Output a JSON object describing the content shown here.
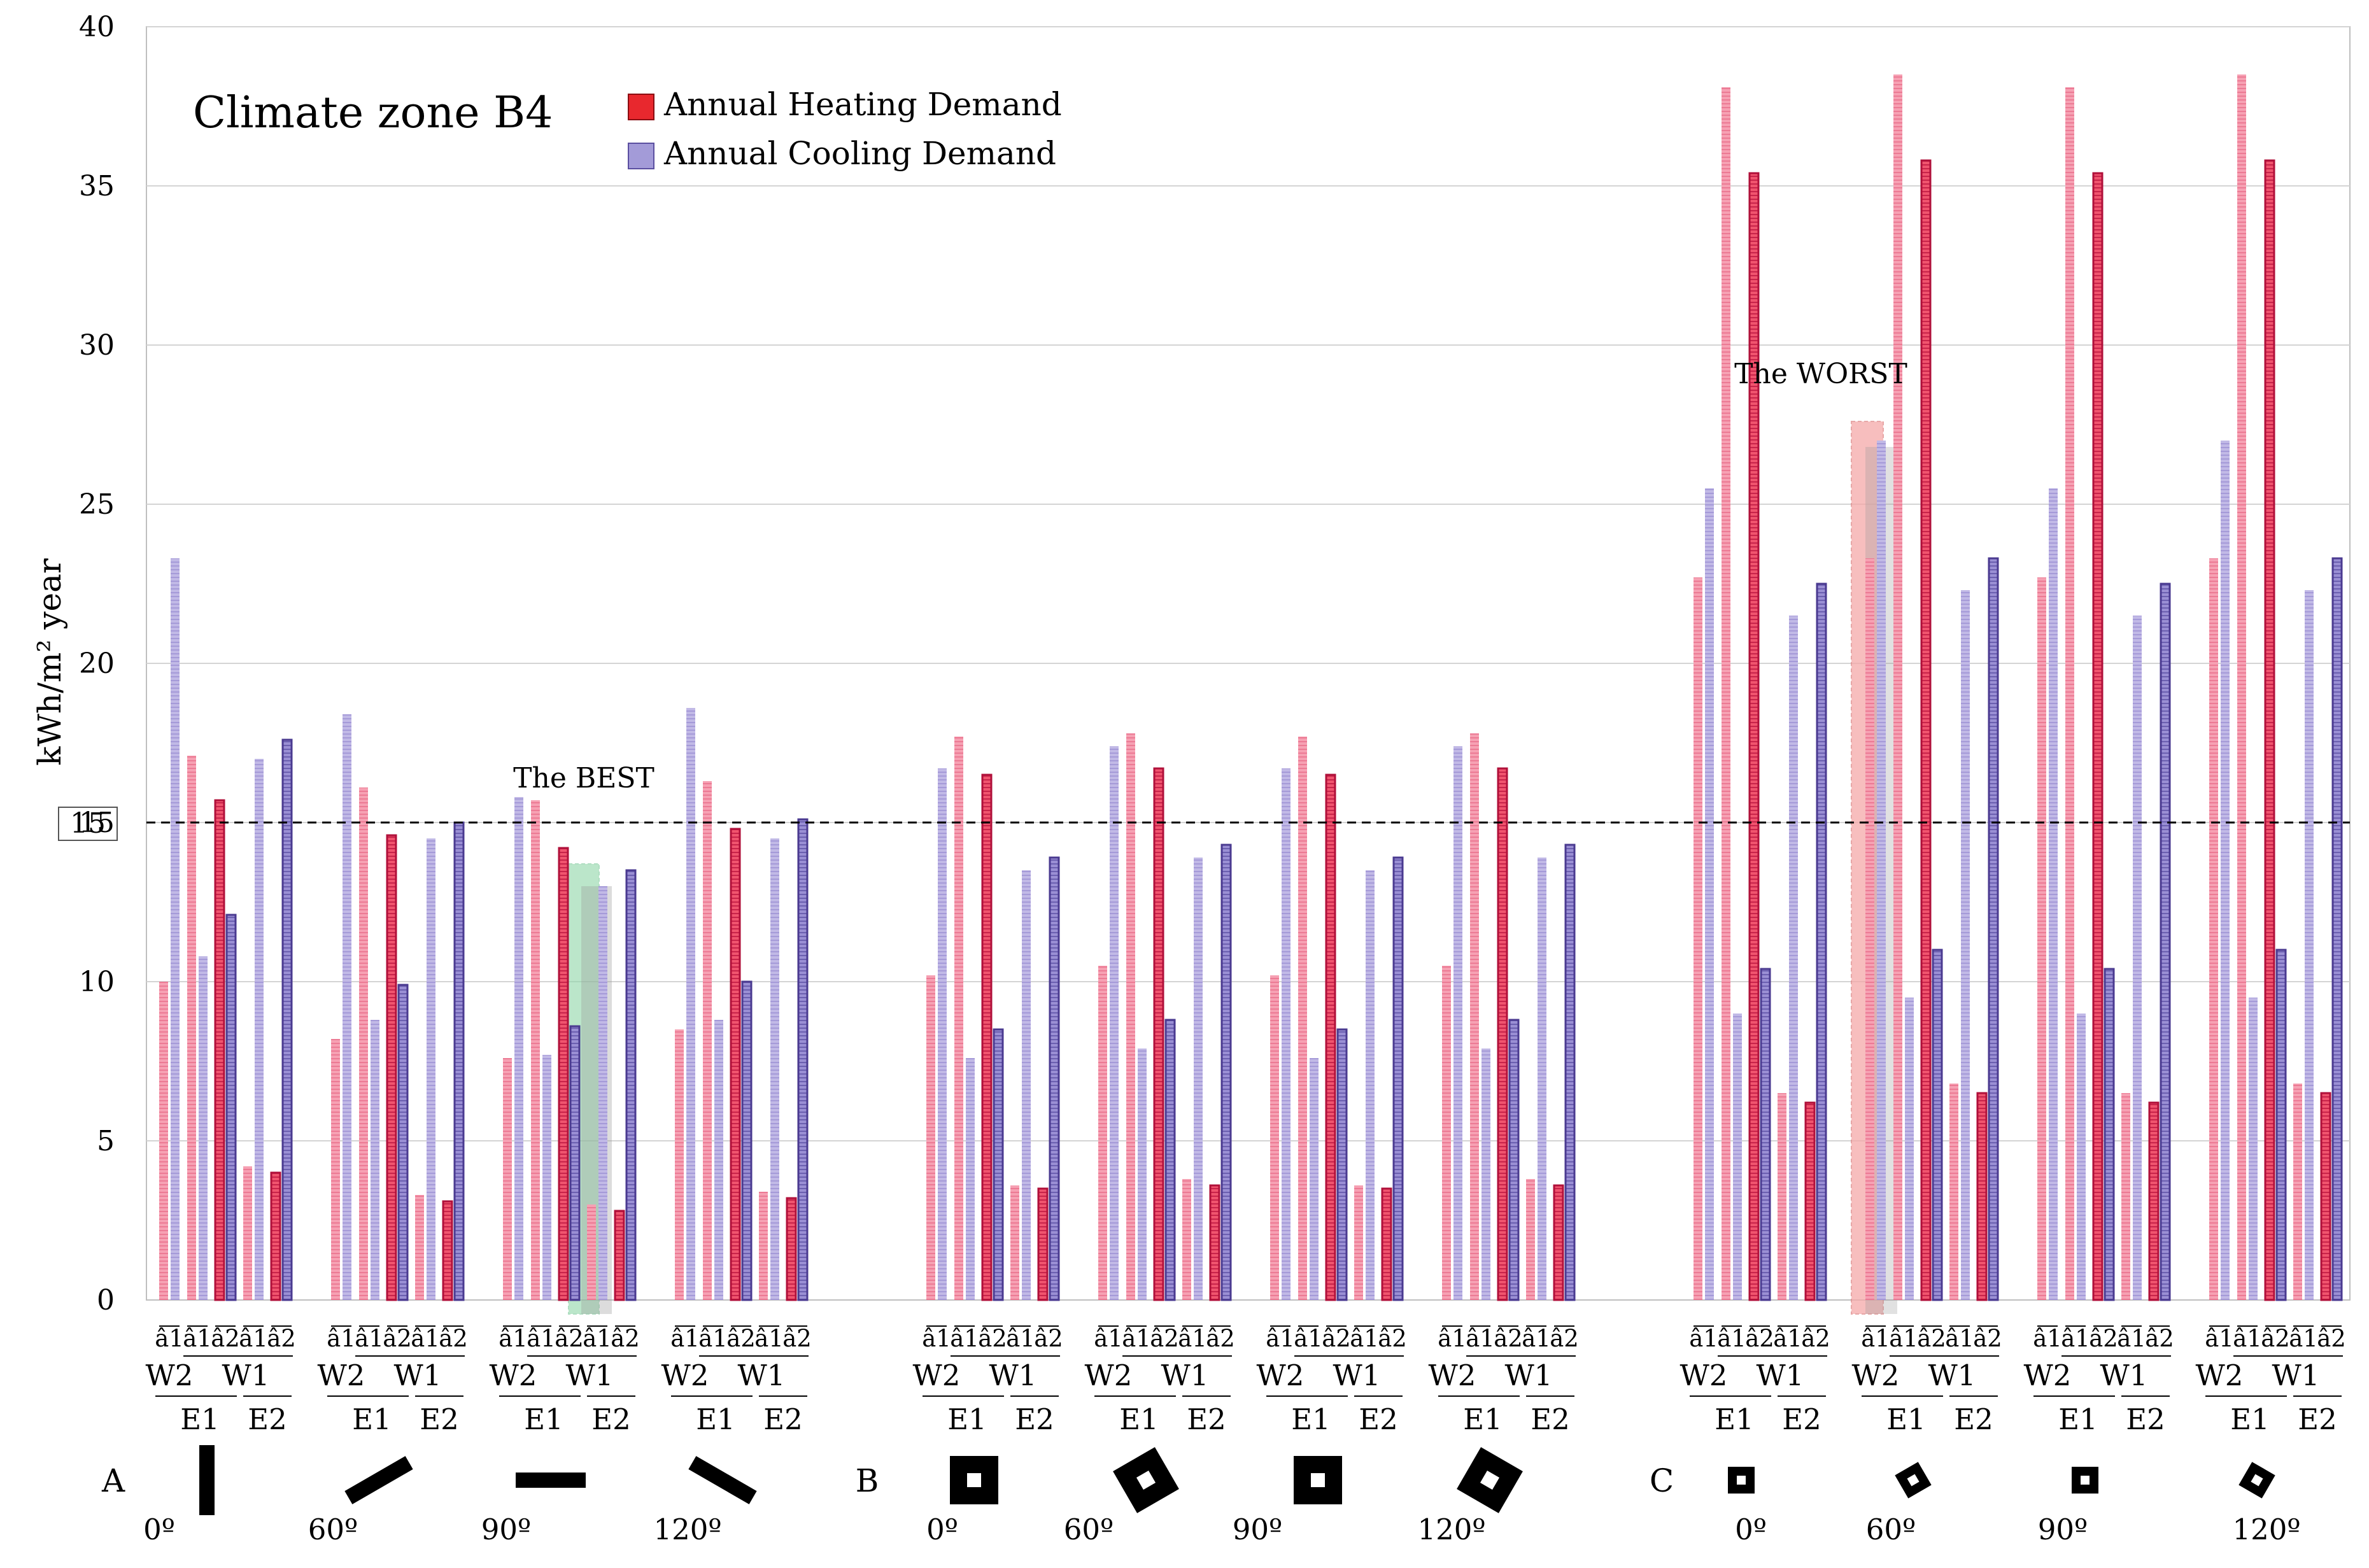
{
  "chart_data": {
    "type": "bar",
    "title": "Climate zone B4",
    "ylabel": "kWh/m² year",
    "ylim": [
      0,
      40
    ],
    "yticks": [
      0,
      5,
      10,
      15,
      20,
      25,
      30,
      35,
      40
    ],
    "reference_line": 15,
    "reference_label": "15",
    "legend": {
      "heating": "Annual Heating Demand",
      "cooling": "Annual Cooling Demand"
    },
    "colors": {
      "heating_fill": "#f0546e",
      "heating_edge": "#b0103a",
      "cooling_fill": "#9a8fd4",
      "cooling_edge": "#4a3a90",
      "best_highlight": "#8ed6a8",
      "worst_highlight": "#f5a9a9"
    },
    "sections": [
      "A",
      "B",
      "C"
    ],
    "angles": [
      "0º",
      "60º",
      "90º",
      "120º"
    ],
    "config_labels": [
      "â1",
      "â1",
      "â2",
      "â1",
      "â2"
    ],
    "group_labels": {
      "w2": "W2",
      "w1": "W1",
      "e1": "E1",
      "e2": "E2"
    },
    "annotations": {
      "best": "The BEST",
      "worst": "The WORST"
    },
    "groups": [
      {
        "section": "A",
        "angle": "0º",
        "heating": [
          10.0,
          17.1,
          15.7,
          4.2,
          4.0
        ],
        "cooling": [
          23.3,
          10.8,
          12.1,
          17.0,
          17.6
        ]
      },
      {
        "section": "A",
        "angle": "60º",
        "heating": [
          8.2,
          16.1,
          14.6,
          3.3,
          3.1
        ],
        "cooling": [
          18.4,
          8.8,
          9.9,
          14.5,
          15.0
        ]
      },
      {
        "section": "A",
        "angle": "90º",
        "heating": [
          7.6,
          15.7,
          14.2,
          3.0,
          2.8
        ],
        "cooling": [
          15.8,
          7.7,
          8.6,
          13.0,
          13.5
        ]
      },
      {
        "section": "A",
        "angle": "120º",
        "heating": [
          8.5,
          16.3,
          14.8,
          3.4,
          3.2
        ],
        "cooling": [
          18.6,
          8.8,
          10.0,
          14.5,
          15.1
        ]
      },
      {
        "section": "B",
        "angle": "0º",
        "heating": [
          10.2,
          17.7,
          16.5,
          3.6,
          3.5
        ],
        "cooling": [
          16.7,
          7.6,
          8.5,
          13.5,
          13.9
        ]
      },
      {
        "section": "B",
        "angle": "60º",
        "heating": [
          10.5,
          17.8,
          16.7,
          3.8,
          3.6
        ],
        "cooling": [
          17.4,
          7.9,
          8.8,
          13.9,
          14.3
        ]
      },
      {
        "section": "B",
        "angle": "90º",
        "heating": [
          10.2,
          17.7,
          16.5,
          3.6,
          3.5
        ],
        "cooling": [
          16.7,
          7.6,
          8.5,
          13.5,
          13.9
        ]
      },
      {
        "section": "B",
        "angle": "120º",
        "heating": [
          10.5,
          17.8,
          16.7,
          3.8,
          3.6
        ],
        "cooling": [
          17.4,
          7.9,
          8.8,
          13.9,
          14.3
        ]
      },
      {
        "section": "C",
        "angle": "0º",
        "heating": [
          22.7,
          38.1,
          35.4,
          6.5,
          6.2
        ],
        "cooling": [
          25.5,
          9.0,
          10.4,
          21.5,
          22.5
        ]
      },
      {
        "section": "C",
        "angle": "60º",
        "heating": [
          23.3,
          38.5,
          35.8,
          6.8,
          6.5
        ],
        "cooling": [
          27.0,
          9.5,
          11.0,
          22.3,
          23.3
        ]
      },
      {
        "section": "C",
        "angle": "90º",
        "heating": [
          22.7,
          38.1,
          35.4,
          6.5,
          6.2
        ],
        "cooling": [
          25.5,
          9.0,
          10.4,
          21.5,
          22.5
        ]
      },
      {
        "section": "C",
        "angle": "120º",
        "heating": [
          23.3,
          38.5,
          35.8,
          6.8,
          6.5
        ],
        "cooling": [
          27.0,
          9.5,
          11.0,
          22.3,
          23.3
        ]
      }
    ]
  }
}
